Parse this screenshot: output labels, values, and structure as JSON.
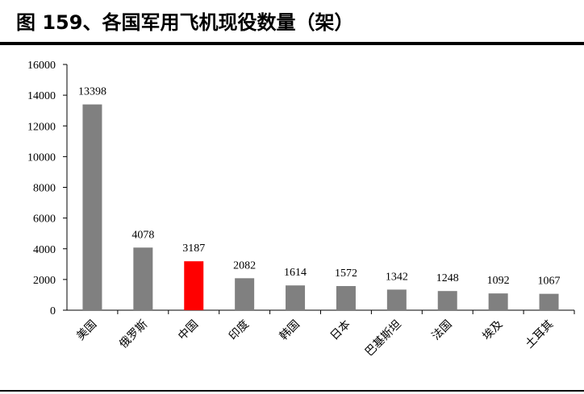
{
  "chart_data": {
    "type": "bar",
    "title": "图 159、各国军用飞机现役数量（架）",
    "categories": [
      "美国",
      "俄罗斯",
      "中国",
      "印度",
      "韩国",
      "日本",
      "巴基斯坦",
      "法国",
      "埃及",
      "土耳其"
    ],
    "values": [
      13398,
      4078,
      3187,
      2082,
      1614,
      1572,
      1342,
      1248,
      1092,
      1067
    ],
    "colors": [
      "#808080",
      "#808080",
      "#ff0000",
      "#808080",
      "#808080",
      "#808080",
      "#808080",
      "#808080",
      "#808080",
      "#808080"
    ],
    "ylim": [
      0,
      16000
    ],
    "yticks": [
      0,
      2000,
      4000,
      6000,
      8000,
      10000,
      12000,
      14000,
      16000
    ],
    "grid": false
  }
}
